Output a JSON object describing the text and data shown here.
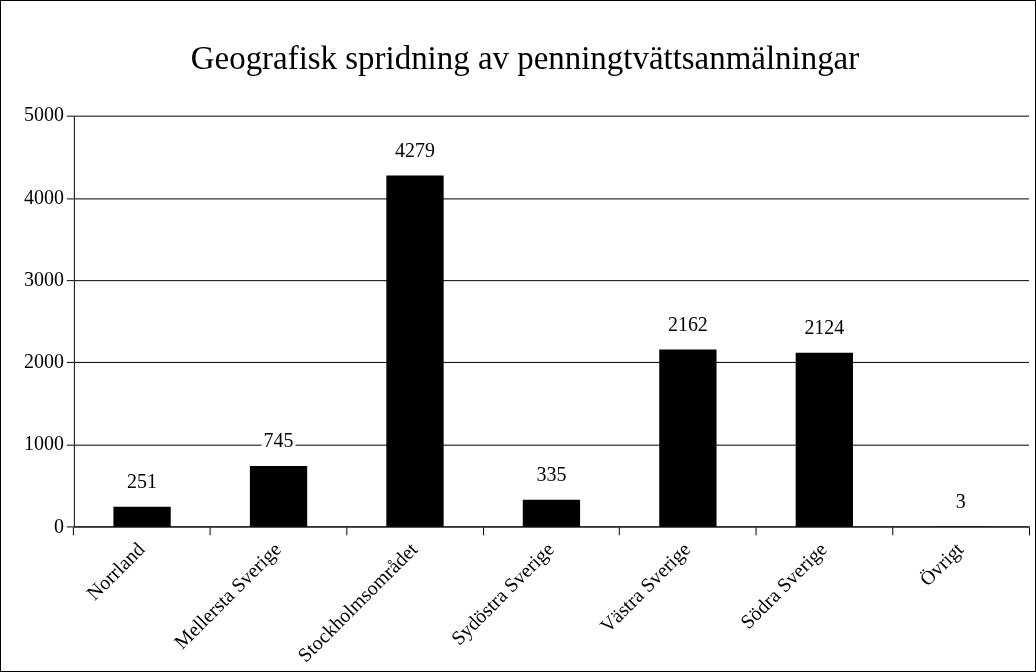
{
  "chart_data": {
    "type": "bar",
    "title": "Geografisk spridning av penningtvättsanmälningar",
    "categories": [
      "Norrland",
      "Mellersta Sverige",
      "Stockholmsområdet",
      "Sydöstra Sverige",
      "Västra Sverige",
      "Södra Sverige",
      "Övrigt"
    ],
    "values": [
      251,
      745,
      4279,
      335,
      2162,
      2124,
      3
    ],
    "color": "#000000",
    "ylim": [
      0,
      5000
    ],
    "yticks": [
      0,
      1000,
      2000,
      3000,
      4000,
      5000
    ],
    "grid": "y",
    "data_labels": true
  }
}
